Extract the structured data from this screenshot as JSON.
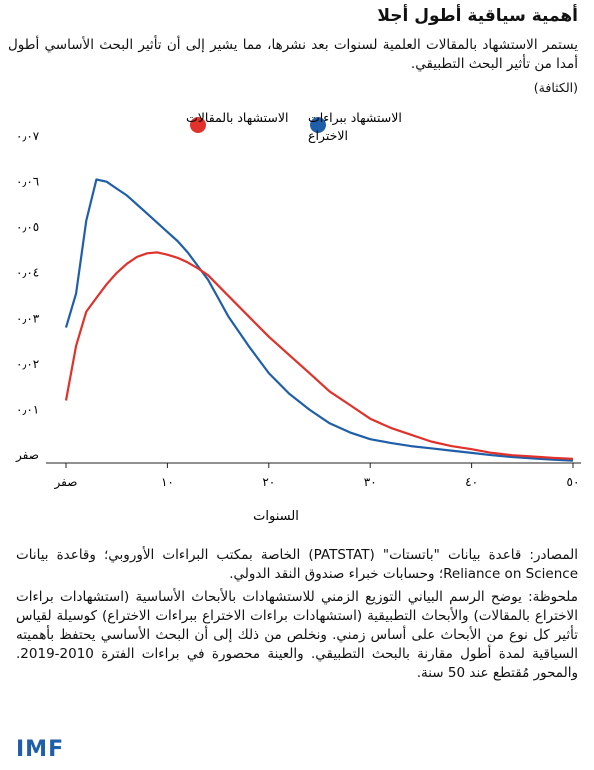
{
  "header": {
    "title": "أهمية سياقية أطول أجلا",
    "subtitle": "يستمر الاستشهاد بالمقالات العلمية لسنوات بعد نشرها، مما يشير إلى أن تأثير البحث الأساسي أطول أمدا من تأثير البحث التطبيقي.",
    "units": "(الكثافة)"
  },
  "chart_data": {
    "type": "line",
    "xlabel": "السنوات",
    "ylabel": "",
    "xlim": [
      0,
      50
    ],
    "ylim": [
      0,
      0.07
    ],
    "x_ticks": [
      0,
      10,
      20,
      30,
      40,
      50
    ],
    "x_tick_labels": [
      "صفر",
      "١٠",
      "٢٠",
      "٣٠",
      "٤٠",
      "٥٠"
    ],
    "y_ticks": [
      0,
      0.01,
      0.02,
      0.03,
      0.04,
      0.05,
      0.06,
      0.07
    ],
    "y_tick_labels": [
      "صفر",
      "٠٫٠١",
      "٠٫٠٢",
      "٠٫٠٣",
      "٠٫٠٤",
      "٠٫٠٥",
      "٠٫٠٦",
      "٠٫٠٧"
    ],
    "grid": false,
    "legend_position": "top",
    "series": [
      {
        "name": "الاستشهاد ببراءات الاختراع",
        "color": "#1f5fa9",
        "x": [
          0,
          1,
          2,
          3,
          4,
          5,
          6,
          7,
          8,
          9,
          10,
          11,
          12,
          13,
          14,
          15,
          16,
          18,
          20,
          22,
          24,
          26,
          28,
          30,
          32,
          34,
          36,
          38,
          40,
          42,
          44,
          46,
          48,
          50
        ],
        "y": [
          0.0295,
          0.037,
          0.053,
          0.062,
          0.0615,
          0.06,
          0.0585,
          0.0565,
          0.0545,
          0.0525,
          0.0505,
          0.0485,
          0.046,
          0.043,
          0.04,
          0.036,
          0.032,
          0.0255,
          0.0195,
          0.015,
          0.0115,
          0.0085,
          0.0065,
          0.005,
          0.0042,
          0.0035,
          0.003,
          0.0025,
          0.002,
          0.0015,
          0.0011,
          0.0008,
          0.0005,
          0.0003
        ]
      },
      {
        "name": "الاستشهاد بالمقالات",
        "color": "#e0322b",
        "x": [
          0,
          1,
          2,
          3,
          4,
          5,
          6,
          7,
          8,
          9,
          10,
          11,
          12,
          13,
          14,
          16,
          18,
          20,
          22,
          24,
          26,
          28,
          30,
          32,
          34,
          36,
          38,
          40,
          42,
          44,
          46,
          48,
          50
        ],
        "y": [
          0.0135,
          0.0255,
          0.033,
          0.036,
          0.039,
          0.0415,
          0.0435,
          0.045,
          0.0458,
          0.046,
          0.0455,
          0.0448,
          0.0438,
          0.0425,
          0.041,
          0.0365,
          0.032,
          0.0275,
          0.0235,
          0.0195,
          0.0155,
          0.0125,
          0.0095,
          0.0075,
          0.006,
          0.0045,
          0.0035,
          0.0028,
          0.002,
          0.0015,
          0.0012,
          0.0009,
          0.0007
        ]
      }
    ]
  },
  "footer": {
    "source": "المصادر: قاعدة بيانات \"باتستات\" (PATSTAT) الخاصة بمكتب البراءات الأوروبي؛ وقاعدة بيانات Reliance on Science؛ وحسابات خبراء صندوق النقد الدولي.",
    "note": "ملحوظة: يوضح الرسم البياني التوزيع الزمني للاستشهادات بالأبحاث الأساسية (استشهادات براءات الاختراع بالمقالات) والأبحاث التطبيقية (استشهادات براءات الاختراع ببراءات الاختراع) كوسيلة لقياس تأثير كل نوع من الأبحاث على أساس زمني. ونخلص من ذلك إلى أن البحث الأساسي يحتفظ بأهميته السياقية لمدة أطول مقارنة بالبحث التطبيقي. والعينة محصورة في براءات الفترة 2010-2019. والمحور مُقتطع عند 50 سنة.",
    "logo": "IMF"
  }
}
